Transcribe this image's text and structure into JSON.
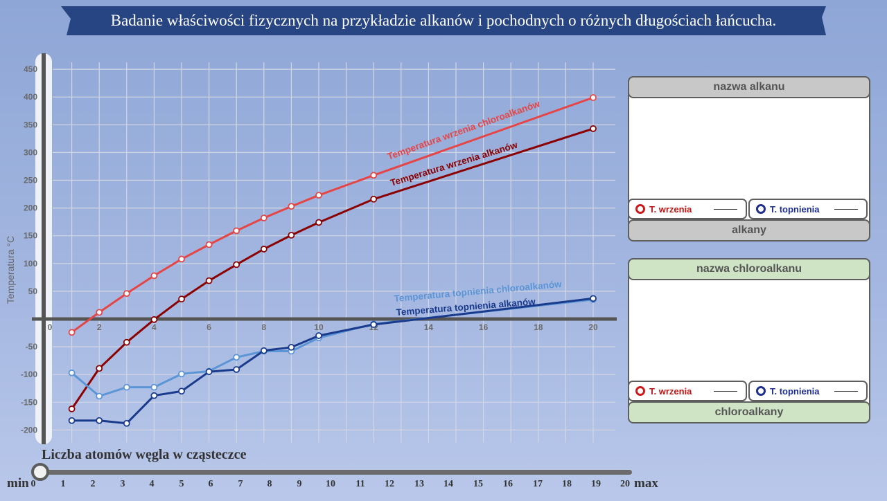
{
  "header": {
    "title": "Badanie właściwości fizycznych na przykładzie alkanów i pochodnych o różnych długościach łańcucha."
  },
  "colors": {
    "boil_chloro": "#e64545",
    "boil_alkane": "#8b0000",
    "melt_chloro": "#5b95d6",
    "melt_alkane": "#1a3a8c",
    "panel_alkane_head": "#c8c8c8",
    "panel_chloro_head": "#cfe4c5"
  },
  "chart_data": {
    "type": "line",
    "title": "",
    "xlabel": "Liczba atomów węgla w cząsteczce",
    "ylabel": "Temperatura °C",
    "xlim": [
      0,
      21
    ],
    "ylim": [
      -200,
      450
    ],
    "x_ticks": [
      0,
      2,
      4,
      6,
      8,
      10,
      12,
      14,
      16,
      18,
      20
    ],
    "y_ticks": [
      -200,
      -150,
      -100,
      -50,
      50,
      100,
      150,
      200,
      250,
      300,
      350,
      400,
      450
    ],
    "grid": true,
    "series": [
      {
        "name": "Temperatura wrzenia chloroalkanów",
        "x": [
          1,
          2,
          3,
          4,
          5,
          6,
          7,
          8,
          9,
          10,
          12,
          20
        ],
        "values": [
          -24,
          12,
          46,
          78,
          108,
          134,
          159,
          182,
          203,
          223,
          259,
          399
        ]
      },
      {
        "name": "Temperatura wrzenia alkanów",
        "x": [
          1,
          2,
          3,
          4,
          5,
          6,
          7,
          8,
          9,
          10,
          12,
          20
        ],
        "values": [
          -162,
          -89,
          -42,
          -1,
          36,
          69,
          98,
          126,
          151,
          174,
          216,
          343
        ]
      },
      {
        "name": "Temperatura topnienia chloroalkanów",
        "x": [
          1,
          2,
          3,
          4,
          5,
          6,
          7,
          8,
          9,
          10,
          12,
          20
        ],
        "values": [
          -97,
          -139,
          -123,
          -123,
          -99,
          -94,
          -69,
          -58,
          -58,
          -34,
          -9,
          35
        ]
      },
      {
        "name": "Temperatura topnienia alkanów",
        "x": [
          1,
          2,
          3,
          4,
          5,
          6,
          7,
          8,
          9,
          10,
          12,
          20
        ],
        "values": [
          -183,
          -183,
          -188,
          -138,
          -130,
          -95,
          -91,
          -57,
          -51,
          -30,
          -10,
          37
        ]
      }
    ]
  },
  "panels": {
    "alkane": {
      "title": "nazwa alkanu",
      "footer": "alkany",
      "legend_boil": "T. wrzenia",
      "legend_melt": "T. topnienia"
    },
    "chloro": {
      "title": "nazwa chloroalkanu",
      "footer": "chloroalkany",
      "legend_boil": "T. wrzenia",
      "legend_melt": "T. topnienia"
    }
  },
  "slider": {
    "min_label": "min",
    "max_label": "max",
    "value": 0,
    "ticks": [
      "0",
      "1",
      "2",
      "3",
      "4",
      "5",
      "6",
      "7",
      "8",
      "9",
      "10",
      "11",
      "12",
      "13",
      "14",
      "15",
      "16",
      "17",
      "18",
      "19",
      "20"
    ]
  }
}
